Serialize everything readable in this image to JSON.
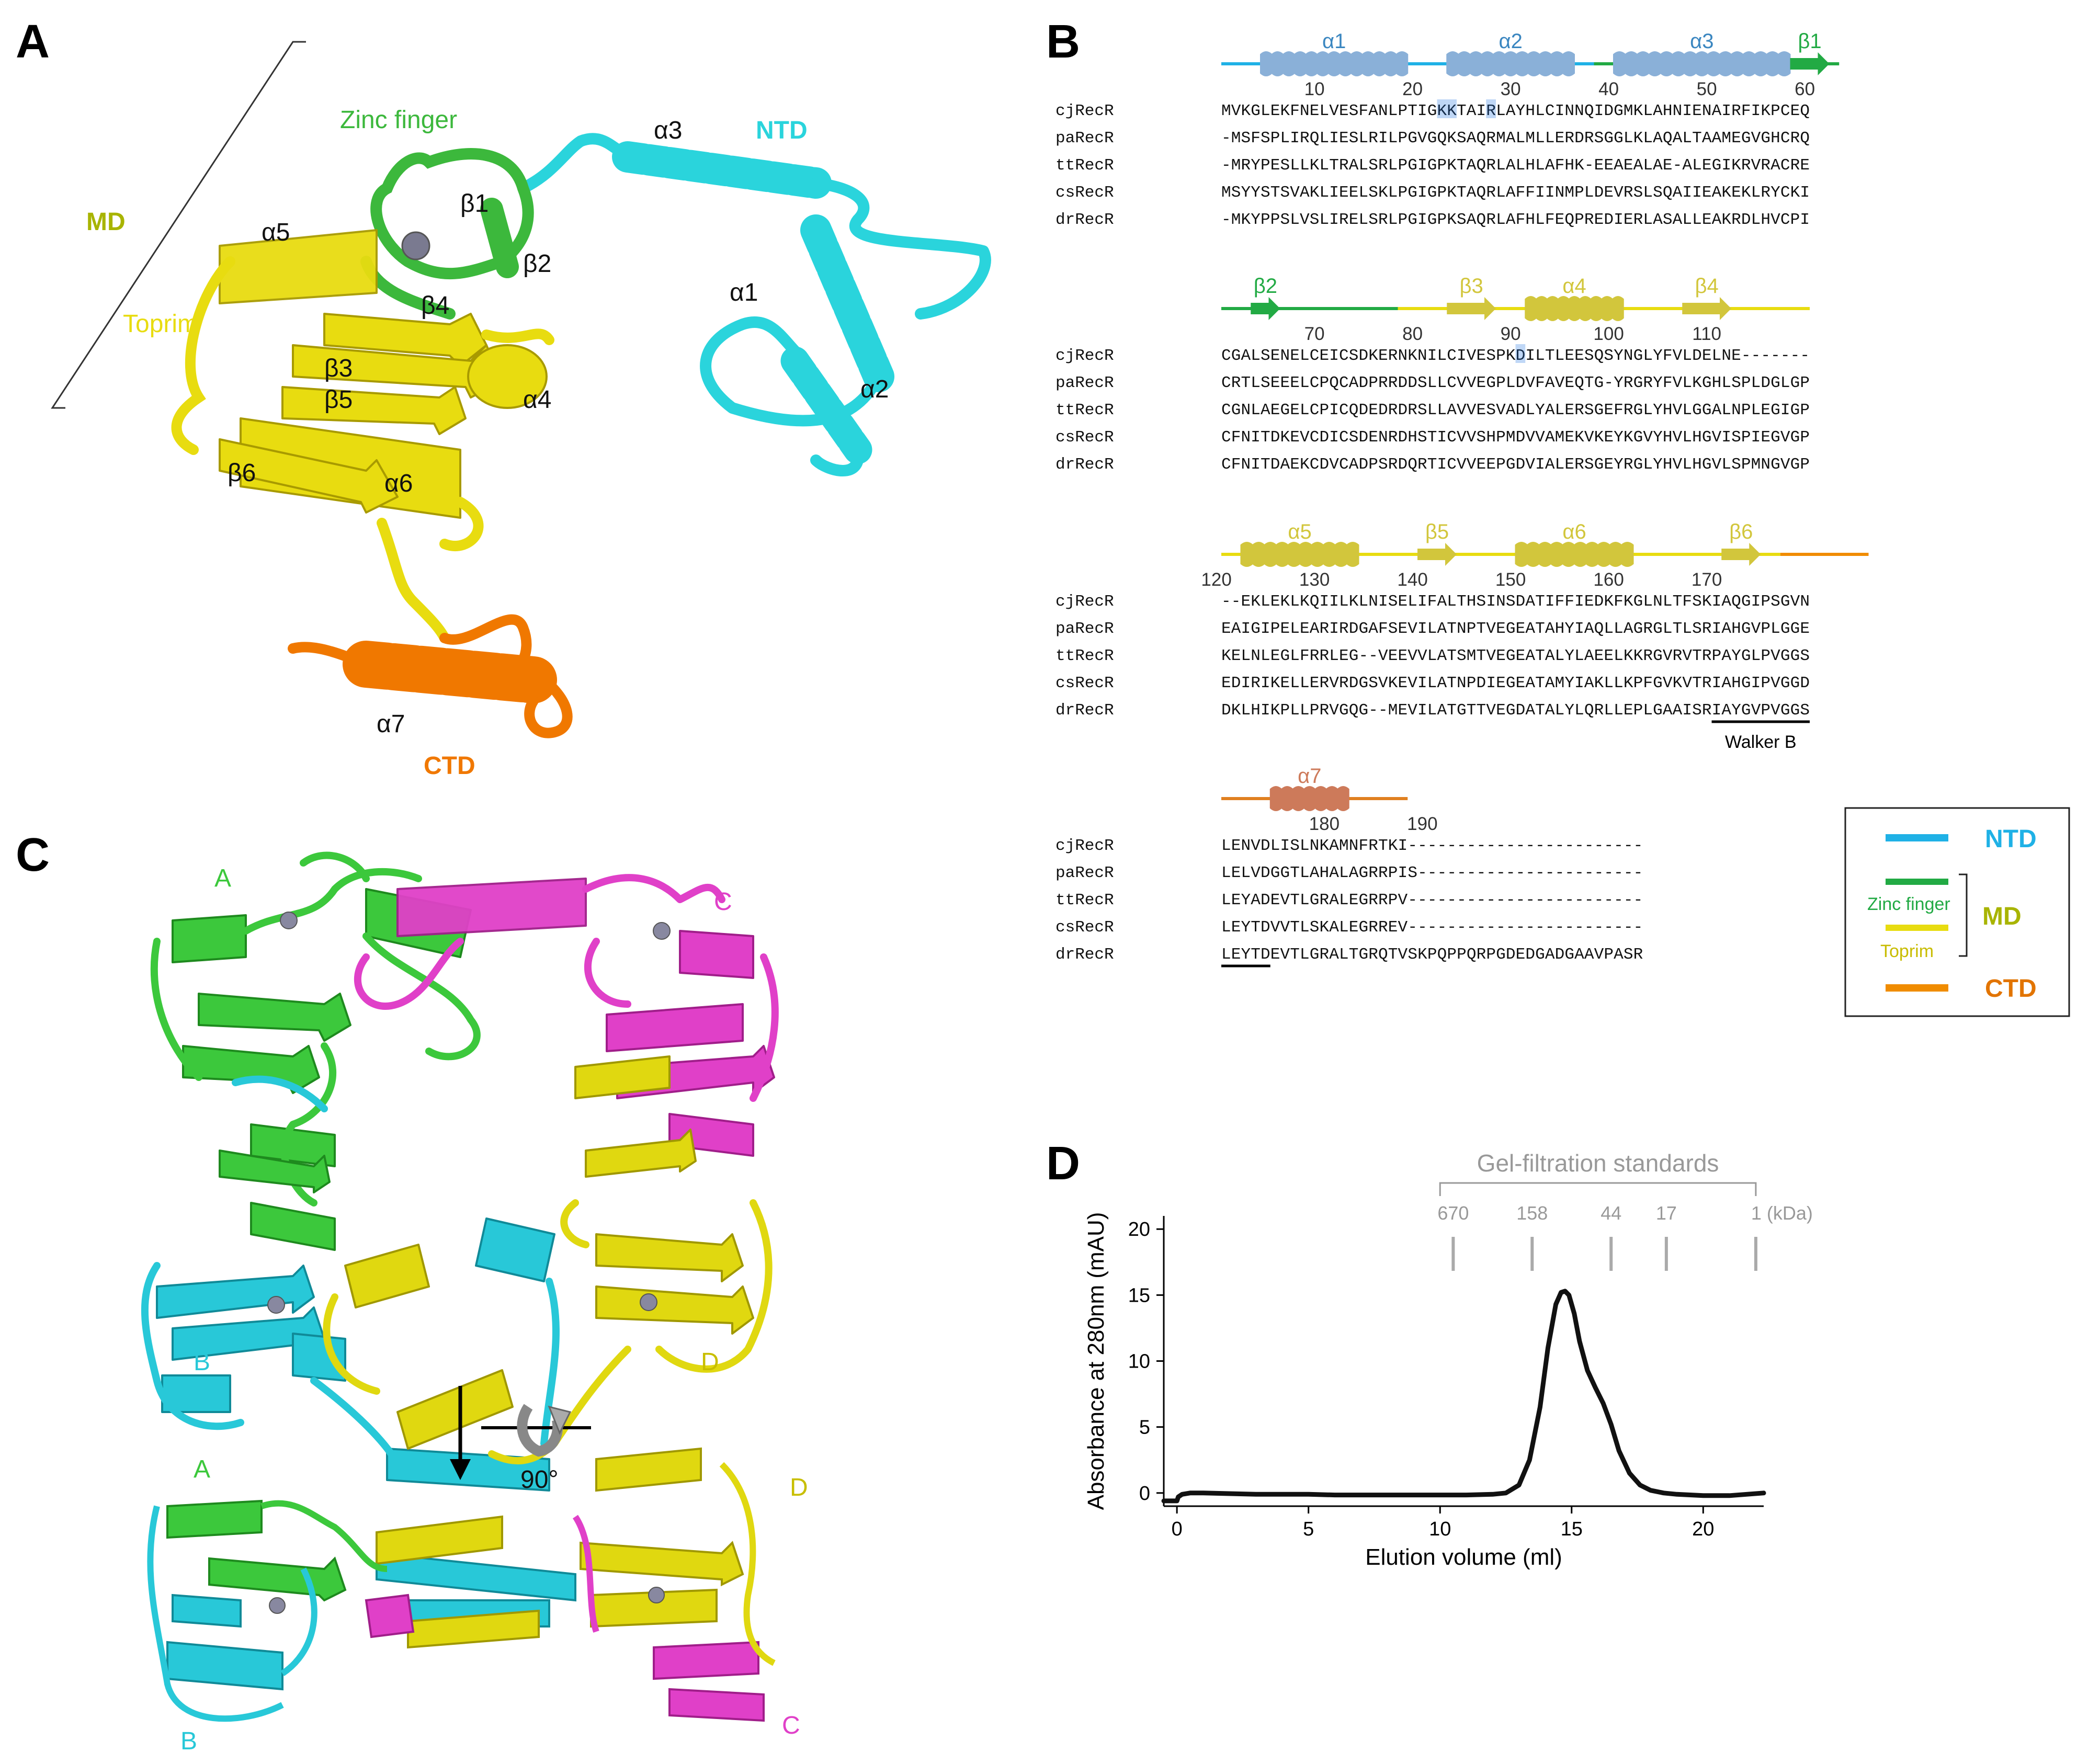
{
  "colors": {
    "ntd": "#2ad4dc",
    "zinc": "#3cb83c",
    "toprim": "#e8dc10",
    "ctd": "#f07800",
    "md_label": "#a8b400",
    "chainA": "#3cc83c",
    "chainB": "#28c8d8",
    "chainC": "#e040c8",
    "chainD": "#e0d810",
    "ss_ntd": "#8ab0d8",
    "ss_zinc": "#22aa44",
    "ss_toprim": "#d2c63c",
    "ss_ctd": "#cd7a5a",
    "highlight": "#1a6fe0"
  },
  "panel_a": {
    "letter": "A",
    "labels": {
      "zinc_finger": "Zinc finger",
      "ntd": "NTD",
      "md": "MD",
      "toprim": "Toprim",
      "ctd": "CTD",
      "a1": "α1",
      "a2": "α2",
      "a3": "α3",
      "a4": "α4",
      "a5": "α5",
      "a6": "α6",
      "a7": "α7",
      "b1": "β1",
      "b2": "β2",
      "b3": "β3",
      "b4": "β4",
      "b5": "β5",
      "b6": "β6"
    }
  },
  "panel_b": {
    "letter": "B",
    "blocks": [
      {
        "ruler": [
          "10",
          "20",
          "30",
          "40",
          "50",
          "60"
        ],
        "ss": [
          "α1",
          "α2",
          "α3",
          "β1"
        ],
        "rows": [
          {
            "name": "cjRecR",
            "seq": "MVKGLEKFNELVESFANLPTIGKKTAIRLAYHLCINNQIDGMKLAHNIENAIRFIKPCEQ"
          },
          {
            "name": "paRecR",
            "seq": "-MSFSPLIRQLIESLRILPGVGQKSAQRMALMLLERDRSGGLKLAQALTAAMEGVGHCRQ"
          },
          {
            "name": "ttRecR",
            "seq": "-MRYPESLLKLTRALSRLPGIGPKTAQRLALHLAFHK-EEAEALAE-ALEGIKRVRACRE"
          },
          {
            "name": "csRecR",
            "seq": "MSYYSTSVAKLIEELSKLPGIGPKTAQRLAFFIINMPLDEVRSLSQAIIEAKEKLRYCKI"
          },
          {
            "name": "drRecR",
            "seq": "-MKYPPSLVSLIRELSRLPGIGPKSAQRLAFHLFEQPREDIERLASALLEAKRDLHVCPI"
          }
        ]
      },
      {
        "ruler": [
          "70",
          "80",
          "90",
          "100",
          "110"
        ],
        "ss": [
          "β2",
          "β3",
          "α4",
          "β4"
        ],
        "rows": [
          {
            "name": "cjRecR",
            "seq": "CGALSENELCEICSDKERNKNILCIVESPKDILTLEESQSYNGLYFVLDELNE-------"
          },
          {
            "name": "paRecR",
            "seq": "CRTLSEEELCPQCADPRRDDSLLCVVEGPLDVFAVEQTG-YRGRYFVLKGHLSPLDGLGP"
          },
          {
            "name": "ttRecR",
            "seq": "CGNLAEGELCPICQDEDRDRSLLAVVESVADLYALERSGEFRGLYHVLGGALNPLEGIGP"
          },
          {
            "name": "csRecR",
            "seq": "CFNITDKEVCDICSDENRDHSTICVVSHPMDVVAMEKVKEYKGVYHVLHGVISPIEGVGP"
          },
          {
            "name": "drRecR",
            "seq": "CFNITDAEKCDVCADPSRDQRTICVVEEPGDVIALERSGEYRGLYHVLHGVLSPMNGVGP"
          }
        ]
      },
      {
        "ruler": [
          "120",
          "130",
          "140",
          "150",
          "160",
          "170"
        ],
        "ss": [
          "α5",
          "β5",
          "α6",
          "β6"
        ],
        "rows": [
          {
            "name": "cjRecR",
            "seq": "--EKLEKLKQIILKLNISELIFALTHSINSDATIFFIEDKFKGLNLTFSKIAQGIPSGVN"
          },
          {
            "name": "paRecR",
            "seq": "EAIGIPELEARIRDGAFSEVILATNPTVEGEATAHYIAQLLAGRGLTLSRIAHGVPLGGE"
          },
          {
            "name": "ttRecR",
            "seq": "KELNLEGLFRRLEG--VEEVVLATSMTVEGEATALYLAEELKKRGVRVTRPAYGLPVGGS"
          },
          {
            "name": "csRecR",
            "seq": "EDIRIKELLERVRDGSVKEVILATNPDIEGEATAMYIAKLLKPFGVKVTRIAHGIPVGGD"
          },
          {
            "name": "drRecR",
            "seq": "DKLHIKPLLPRVGQG--MEVILATGTTVEGDATALYLQRLLEPLGAAISRIAYGVPVGGS"
          }
        ],
        "walker": "Walker B"
      },
      {
        "ruler": [
          "180",
          "190"
        ],
        "ss": [
          "α7"
        ],
        "rows": [
          {
            "name": "cjRecR",
            "seq": "LENVDLISLNKAMNFRTKI------------------------"
          },
          {
            "name": "paRecR",
            "seq": "LELVDGGTLAHALAGRRPIS-----------------------"
          },
          {
            "name": "ttRecR",
            "seq": "LEYADEVTLGRALEGRRPV------------------------"
          },
          {
            "name": "csRecR",
            "seq": "LEYTDVVTLSKALEGRREV------------------------"
          },
          {
            "name": "drRecR",
            "seq": "LEYTDEVTLGRALTGRQTVSKPQPPQRPGDEDGADGAAVPASR"
          }
        ]
      }
    ],
    "legend": {
      "ntd": "NTD",
      "zinc": "Zinc finger",
      "toprim": "Toprim",
      "md": "MD",
      "ctd": "CTD"
    }
  },
  "panel_c": {
    "letter": "C",
    "chains": {
      "a_top": "A",
      "b_top": "B",
      "c_top": "C",
      "d_top": "D",
      "a_bot": "A",
      "b_bot": "B",
      "c_bot": "C",
      "d_bot": "D"
    },
    "rotation": "90°"
  },
  "panel_d": {
    "letter": "D",
    "standards_title": "Gel-filtration standards",
    "standards": [
      {
        "label": "670",
        "volume": 10.5
      },
      {
        "label": "158",
        "volume": 13.5
      },
      {
        "label": "44",
        "volume": 16.5
      },
      {
        "label": "17",
        "volume": 18.6
      },
      {
        "label": "1 (kDa)",
        "volume": 22.0
      }
    ]
  },
  "chart_data": {
    "type": "line",
    "xlabel": "Elution volume (ml)",
    "ylabel": "Absorbance at 280nm (mAU)",
    "xlim": [
      -0.5,
      22.3
    ],
    "ylim": [
      -1,
      21
    ],
    "xticks": [
      0,
      5,
      10,
      15,
      20
    ],
    "yticks": [
      0,
      5,
      10,
      15,
      20
    ],
    "series": [
      {
        "x": [
          -0.5,
          0.0,
          0.05,
          0.2,
          0.5,
          1,
          2,
          3,
          4,
          5,
          6,
          7,
          8,
          9,
          10,
          11,
          12,
          12.5,
          13,
          13.4,
          13.8,
          14.1,
          14.4,
          14.6,
          14.75,
          14.9,
          15.1,
          15.3,
          15.6,
          15.9,
          16.2,
          16.5,
          16.8,
          17.2,
          17.6,
          18,
          18.5,
          19,
          20,
          21,
          22.3
        ],
        "y": [
          -0.6,
          -0.6,
          -0.3,
          -0.1,
          0.0,
          0.0,
          -0.05,
          -0.1,
          -0.1,
          -0.1,
          -0.15,
          -0.15,
          -0.15,
          -0.15,
          -0.15,
          -0.15,
          -0.1,
          0.0,
          0.6,
          2.5,
          6.5,
          11.0,
          14.3,
          15.2,
          15.3,
          15.0,
          13.6,
          11.5,
          9.3,
          8.0,
          6.8,
          5.2,
          3.2,
          1.5,
          0.6,
          0.2,
          0.0,
          -0.1,
          -0.2,
          -0.2,
          0.0
        ]
      }
    ]
  }
}
